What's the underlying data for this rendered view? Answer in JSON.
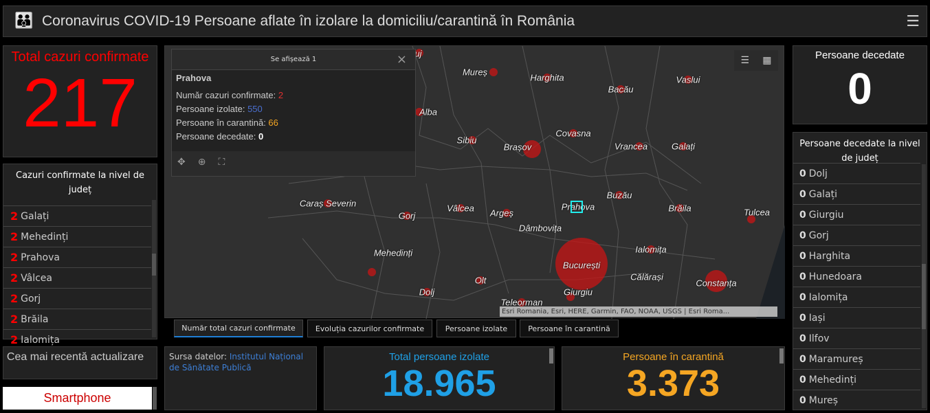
{
  "header": {
    "title": "Coronavirus COVID-19 Persoane aflate în izolare la domiciliu/carantină în România",
    "logo_icon": "insp-logo",
    "menu_icon": "hamburger-icon"
  },
  "colors": {
    "red": "#ff0000",
    "blue": "#1fa0e6",
    "orange": "#f5a623",
    "link": "#3d7fd6"
  },
  "total_confirmed": {
    "title": "Total cazuri confirmate",
    "value": "217"
  },
  "county_confirmed": {
    "title": "Cazuri confirmate la nivel de județ",
    "items": [
      {
        "n": "2",
        "name": "Galați"
      },
      {
        "n": "2",
        "name": "Mehedinți"
      },
      {
        "n": "2",
        "name": "Prahova"
      },
      {
        "n": "2",
        "name": "Vâlcea"
      },
      {
        "n": "2",
        "name": "Gorj"
      },
      {
        "n": "2",
        "name": "Brăila"
      },
      {
        "n": "2",
        "name": "Ialomița"
      }
    ]
  },
  "latest_update": {
    "title": "Cea mai recentă actualizare",
    "smartphone": "Smartphone"
  },
  "popup": {
    "header": "Se afișează 1",
    "county": "Prahova",
    "lines": [
      {
        "label": "Număr cazuri confirmate: ",
        "value": "2"
      },
      {
        "label": "Persoane izolate: ",
        "value": "550"
      },
      {
        "label": "Persoane în carantină: ",
        "value": "66"
      },
      {
        "label": "Persoane decedate: ",
        "value": "0"
      }
    ]
  },
  "map": {
    "attribution": "Esri Romania, Esri, HERE, Garmin, FAO, NOAA, USGS | Esri Roma...",
    "labels": [
      "luj",
      "Mureș",
      "Harghita",
      "Bacău",
      "Vaslui",
      "Alba",
      "Sibiu",
      "Brașov",
      "Covasna",
      "Vrancea",
      "Galați",
      "Caraș Severin",
      "Gorj",
      "Vâlcea",
      "Argeș",
      "Prahova",
      "Buzău",
      "Brăila",
      "Tulcea",
      "Dâmbovița",
      "Mehedinți",
      "Ialomița",
      "București",
      "Călărași",
      "Constanța",
      "Olt",
      "Dolj",
      "Giurgiu",
      "Teleorman"
    ]
  },
  "tabs": [
    "Număr total cazuri confirmate",
    "Evoluția cazurilor confirmate",
    "Persoane izolate",
    "Persoane în carantină"
  ],
  "source": {
    "label": "Sursa datelor: ",
    "link": "Institutul Național de Sănătate Publică"
  },
  "isolated": {
    "title": "Total persoane izolate",
    "value": "18.965"
  },
  "quarantine": {
    "title": "Persoane în carantină",
    "value": "3.373"
  },
  "deceased": {
    "title": "Persoane decedate",
    "value": "0"
  },
  "county_deceased": {
    "title": "Persoane decedate la nivel de județ",
    "items": [
      {
        "n": "0",
        "name": "Dolj"
      },
      {
        "n": "0",
        "name": "Galați"
      },
      {
        "n": "0",
        "name": "Giurgiu"
      },
      {
        "n": "0",
        "name": "Gorj"
      },
      {
        "n": "0",
        "name": "Harghita"
      },
      {
        "n": "0",
        "name": "Hunedoara"
      },
      {
        "n": "0",
        "name": "Ialomița"
      },
      {
        "n": "0",
        "name": "Iași"
      },
      {
        "n": "0",
        "name": "Ilfov"
      },
      {
        "n": "0",
        "name": "Maramureș"
      },
      {
        "n": "0",
        "name": "Mehedinți"
      },
      {
        "n": "0",
        "name": "Mureș"
      }
    ]
  }
}
